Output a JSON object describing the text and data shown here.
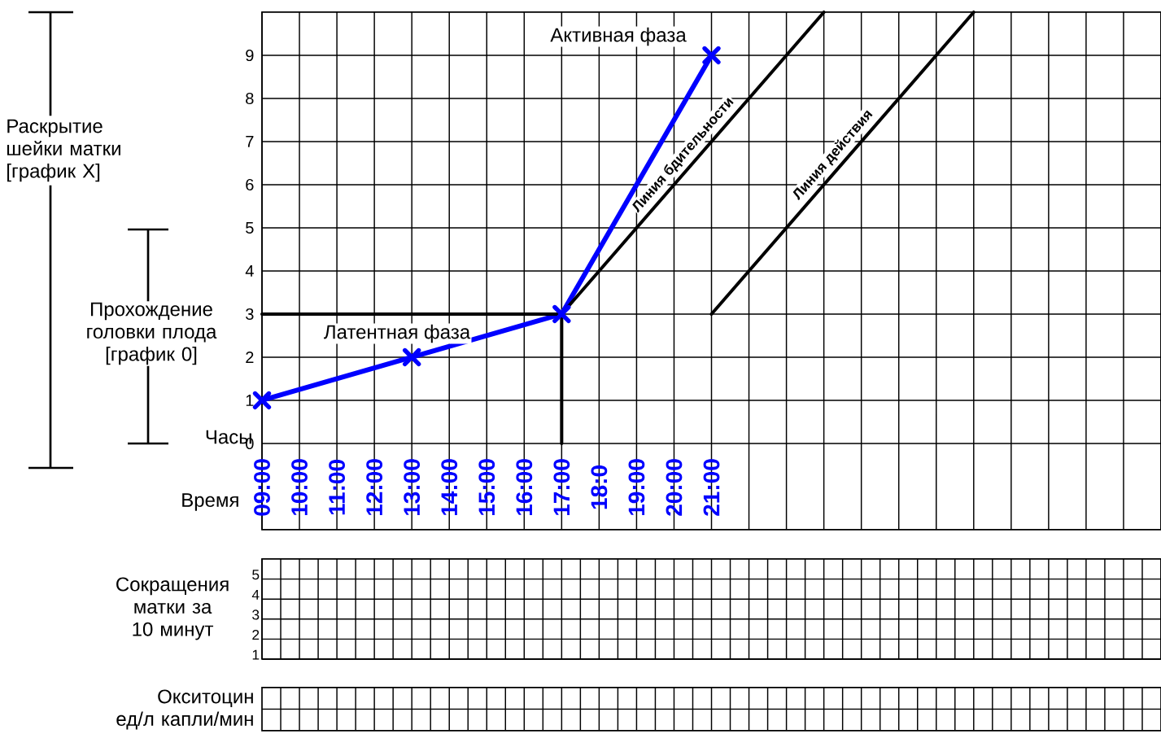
{
  "chart_data": [
    {
      "type": "line",
      "ylabel": "Раскрытие шейки матки [график X]",
      "xlim": [
        9,
        33
      ],
      "ylim": [
        -2,
        10
      ],
      "grid": true,
      "xticks": [
        {
          "value": 9,
          "label": "09:00"
        },
        {
          "value": 10,
          "label": "10:00"
        },
        {
          "value": 11,
          "label": "11:00"
        },
        {
          "value": 12,
          "label": "12:00"
        },
        {
          "value": 13,
          "label": "13:00"
        },
        {
          "value": 14,
          "label": "14:00"
        },
        {
          "value": 15,
          "label": "15:00"
        },
        {
          "value": 16,
          "label": "16:00"
        },
        {
          "value": 17,
          "label": "17:00"
        },
        {
          "value": 18,
          "label": "18:0"
        },
        {
          "value": 19,
          "label": "19:00"
        },
        {
          "value": 20,
          "label": "20:00"
        },
        {
          "value": 21,
          "label": "21:00"
        },
        {
          "value": 22,
          "label": null
        },
        {
          "value": 23,
          "label": null
        },
        {
          "value": 24,
          "label": null
        },
        {
          "value": 25,
          "label": null
        },
        {
          "value": 26,
          "label": null
        },
        {
          "value": 27,
          "label": null
        },
        {
          "value": 28,
          "label": null
        },
        {
          "value": 29,
          "label": null
        },
        {
          "value": 30,
          "label": null
        },
        {
          "value": 31,
          "label": null
        },
        {
          "value": 32,
          "label": null
        },
        {
          "value": 33,
          "label": null
        }
      ],
      "yticks": [
        0,
        1,
        2,
        3,
        4,
        5,
        6,
        7,
        8,
        9
      ],
      "series": [
        {
          "color": "#0000ff",
          "marker": "cross",
          "x": [
            9,
            13,
            17,
            21
          ],
          "values": [
            1,
            2,
            3,
            9
          ]
        },
        {
          "color": "#000000",
          "x": [
            9,
            17,
            17
          ],
          "values": [
            3,
            3,
            0
          ]
        },
        {
          "name": "Линия бдительности",
          "color": "#000000",
          "x": [
            17,
            24
          ],
          "values": [
            3,
            10
          ]
        },
        {
          "name": "Линия действия",
          "color": "#000000",
          "x": [
            21,
            28
          ],
          "values": [
            3,
            10
          ]
        }
      ],
      "annotations": [
        "Активная фаза",
        "Латентная фаза",
        "Прохождение головки плода [график 0]",
        "Часы",
        "Время"
      ]
    },
    {
      "type": "line",
      "ylabel": "Сокращения матки за 10 минут",
      "xlim": [
        9,
        33
      ],
      "ylim": [
        1,
        6
      ],
      "grid": true,
      "tick_labels": "y",
      "annotations": [
        "Окситоцин ед/л капли/мин"
      ],
      "xticks": [
        {
          "value": 9,
          "label": null
        },
        {
          "value": 9.5,
          "label": null
        },
        {
          "value": 10,
          "label": null
        },
        {
          "value": 10.5,
          "label": null
        },
        {
          "value": 11,
          "label": null
        },
        {
          "value": 11.5,
          "label": null
        },
        {
          "value": 12,
          "label": null
        },
        {
          "value": 12.5,
          "label": null
        },
        {
          "value": 13,
          "label": null
        },
        {
          "value": 13.5,
          "label": null
        },
        {
          "value": 14,
          "label": null
        },
        {
          "value": 14.5,
          "label": null
        },
        {
          "value": 15,
          "label": null
        },
        {
          "value": 15.5,
          "label": null
        },
        {
          "value": 16,
          "label": null
        },
        {
          "value": 16.5,
          "label": null
        },
        {
          "value": 17,
          "label": null
        },
        {
          "value": 17.5,
          "label": null
        },
        {
          "value": 18,
          "label": null
        },
        {
          "value": 18.5,
          "label": null
        },
        {
          "value": 19,
          "label": null
        },
        {
          "value": 19.5,
          "label": null
        },
        {
          "value": 20,
          "label": null
        },
        {
          "value": 20.5,
          "label": null
        },
        {
          "value": 21,
          "label": null
        },
        {
          "value": 21.5,
          "label": null
        },
        {
          "value": 22,
          "label": null
        },
        {
          "value": 22.5,
          "label": null
        },
        {
          "value": 23,
          "label": null
        },
        {
          "value": 23.5,
          "label": null
        },
        {
          "value": 24,
          "label": null
        },
        {
          "value": 24.5,
          "label": null
        },
        {
          "value": 25,
          "label": null
        },
        {
          "value": 25.5,
          "label": null
        },
        {
          "value": 26,
          "label": null
        },
        {
          "value": 26.5,
          "label": null
        },
        {
          "value": 27,
          "label": null
        },
        {
          "value": 27.5,
          "label": null
        },
        {
          "value": 28,
          "label": null
        },
        {
          "value": 28.5,
          "label": null
        },
        {
          "value": 29,
          "label": null
        },
        {
          "value": 29.5,
          "label": null
        },
        {
          "value": 30,
          "label": null
        },
        {
          "value": 30.5,
          "label": null
        },
        {
          "value": 31,
          "label": null
        },
        {
          "value": 31.5,
          "label": null
        },
        {
          "value": 32,
          "label": null
        },
        {
          "value": 32.5,
          "label": null
        },
        {
          "value": 33,
          "label": null
        }
      ],
      "yticks": [
        1,
        2,
        3,
        4,
        5
      ]
    }
  ]
}
